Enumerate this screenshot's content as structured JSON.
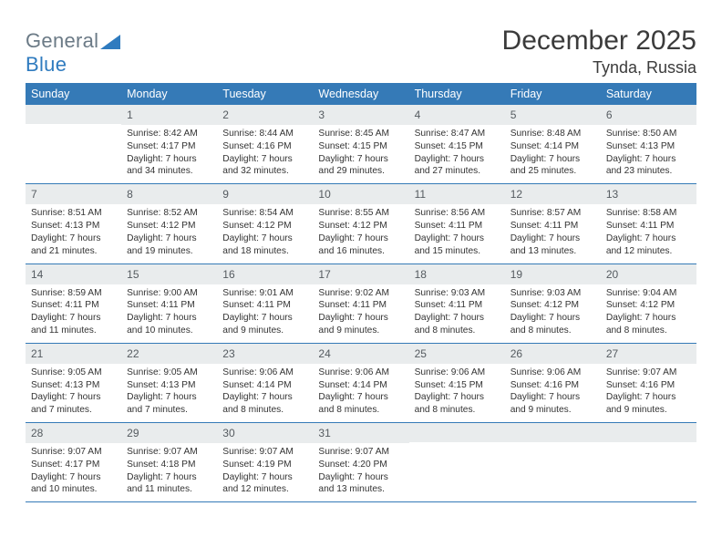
{
  "brand": {
    "part1": "General",
    "part2": "Blue"
  },
  "title": "December 2025",
  "location": "Tynda, Russia",
  "colors": {
    "header_bg": "#357ab7",
    "header_text": "#ffffff",
    "daynum_bg": "#e9eced",
    "daynum_text": "#555b60",
    "rule": "#357ab7",
    "body_text": "#333333",
    "page_bg": "#ffffff"
  },
  "day_names": [
    "Sunday",
    "Monday",
    "Tuesday",
    "Wednesday",
    "Thursday",
    "Friday",
    "Saturday"
  ],
  "weeks": [
    [
      {
        "n": "",
        "lines": []
      },
      {
        "n": "1",
        "lines": [
          "Sunrise: 8:42 AM",
          "Sunset: 4:17 PM",
          "Daylight: 7 hours and 34 minutes."
        ]
      },
      {
        "n": "2",
        "lines": [
          "Sunrise: 8:44 AM",
          "Sunset: 4:16 PM",
          "Daylight: 7 hours and 32 minutes."
        ]
      },
      {
        "n": "3",
        "lines": [
          "Sunrise: 8:45 AM",
          "Sunset: 4:15 PM",
          "Daylight: 7 hours and 29 minutes."
        ]
      },
      {
        "n": "4",
        "lines": [
          "Sunrise: 8:47 AM",
          "Sunset: 4:15 PM",
          "Daylight: 7 hours and 27 minutes."
        ]
      },
      {
        "n": "5",
        "lines": [
          "Sunrise: 8:48 AM",
          "Sunset: 4:14 PM",
          "Daylight: 7 hours and 25 minutes."
        ]
      },
      {
        "n": "6",
        "lines": [
          "Sunrise: 8:50 AM",
          "Sunset: 4:13 PM",
          "Daylight: 7 hours and 23 minutes."
        ]
      }
    ],
    [
      {
        "n": "7",
        "lines": [
          "Sunrise: 8:51 AM",
          "Sunset: 4:13 PM",
          "Daylight: 7 hours and 21 minutes."
        ]
      },
      {
        "n": "8",
        "lines": [
          "Sunrise: 8:52 AM",
          "Sunset: 4:12 PM",
          "Daylight: 7 hours and 19 minutes."
        ]
      },
      {
        "n": "9",
        "lines": [
          "Sunrise: 8:54 AM",
          "Sunset: 4:12 PM",
          "Daylight: 7 hours and 18 minutes."
        ]
      },
      {
        "n": "10",
        "lines": [
          "Sunrise: 8:55 AM",
          "Sunset: 4:12 PM",
          "Daylight: 7 hours and 16 minutes."
        ]
      },
      {
        "n": "11",
        "lines": [
          "Sunrise: 8:56 AM",
          "Sunset: 4:11 PM",
          "Daylight: 7 hours and 15 minutes."
        ]
      },
      {
        "n": "12",
        "lines": [
          "Sunrise: 8:57 AM",
          "Sunset: 4:11 PM",
          "Daylight: 7 hours and 13 minutes."
        ]
      },
      {
        "n": "13",
        "lines": [
          "Sunrise: 8:58 AM",
          "Sunset: 4:11 PM",
          "Daylight: 7 hours and 12 minutes."
        ]
      }
    ],
    [
      {
        "n": "14",
        "lines": [
          "Sunrise: 8:59 AM",
          "Sunset: 4:11 PM",
          "Daylight: 7 hours and 11 minutes."
        ]
      },
      {
        "n": "15",
        "lines": [
          "Sunrise: 9:00 AM",
          "Sunset: 4:11 PM",
          "Daylight: 7 hours and 10 minutes."
        ]
      },
      {
        "n": "16",
        "lines": [
          "Sunrise: 9:01 AM",
          "Sunset: 4:11 PM",
          "Daylight: 7 hours and 9 minutes."
        ]
      },
      {
        "n": "17",
        "lines": [
          "Sunrise: 9:02 AM",
          "Sunset: 4:11 PM",
          "Daylight: 7 hours and 9 minutes."
        ]
      },
      {
        "n": "18",
        "lines": [
          "Sunrise: 9:03 AM",
          "Sunset: 4:11 PM",
          "Daylight: 7 hours and 8 minutes."
        ]
      },
      {
        "n": "19",
        "lines": [
          "Sunrise: 9:03 AM",
          "Sunset: 4:12 PM",
          "Daylight: 7 hours and 8 minutes."
        ]
      },
      {
        "n": "20",
        "lines": [
          "Sunrise: 9:04 AM",
          "Sunset: 4:12 PM",
          "Daylight: 7 hours and 8 minutes."
        ]
      }
    ],
    [
      {
        "n": "21",
        "lines": [
          "Sunrise: 9:05 AM",
          "Sunset: 4:13 PM",
          "Daylight: 7 hours and 7 minutes."
        ]
      },
      {
        "n": "22",
        "lines": [
          "Sunrise: 9:05 AM",
          "Sunset: 4:13 PM",
          "Daylight: 7 hours and 7 minutes."
        ]
      },
      {
        "n": "23",
        "lines": [
          "Sunrise: 9:06 AM",
          "Sunset: 4:14 PM",
          "Daylight: 7 hours and 8 minutes."
        ]
      },
      {
        "n": "24",
        "lines": [
          "Sunrise: 9:06 AM",
          "Sunset: 4:14 PM",
          "Daylight: 7 hours and 8 minutes."
        ]
      },
      {
        "n": "25",
        "lines": [
          "Sunrise: 9:06 AM",
          "Sunset: 4:15 PM",
          "Daylight: 7 hours and 8 minutes."
        ]
      },
      {
        "n": "26",
        "lines": [
          "Sunrise: 9:06 AM",
          "Sunset: 4:16 PM",
          "Daylight: 7 hours and 9 minutes."
        ]
      },
      {
        "n": "27",
        "lines": [
          "Sunrise: 9:07 AM",
          "Sunset: 4:16 PM",
          "Daylight: 7 hours and 9 minutes."
        ]
      }
    ],
    [
      {
        "n": "28",
        "lines": [
          "Sunrise: 9:07 AM",
          "Sunset: 4:17 PM",
          "Daylight: 7 hours and 10 minutes."
        ]
      },
      {
        "n": "29",
        "lines": [
          "Sunrise: 9:07 AM",
          "Sunset: 4:18 PM",
          "Daylight: 7 hours and 11 minutes."
        ]
      },
      {
        "n": "30",
        "lines": [
          "Sunrise: 9:07 AM",
          "Sunset: 4:19 PM",
          "Daylight: 7 hours and 12 minutes."
        ]
      },
      {
        "n": "31",
        "lines": [
          "Sunrise: 9:07 AM",
          "Sunset: 4:20 PM",
          "Daylight: 7 hours and 13 minutes."
        ]
      },
      {
        "n": "",
        "lines": []
      },
      {
        "n": "",
        "lines": []
      },
      {
        "n": "",
        "lines": []
      }
    ]
  ]
}
